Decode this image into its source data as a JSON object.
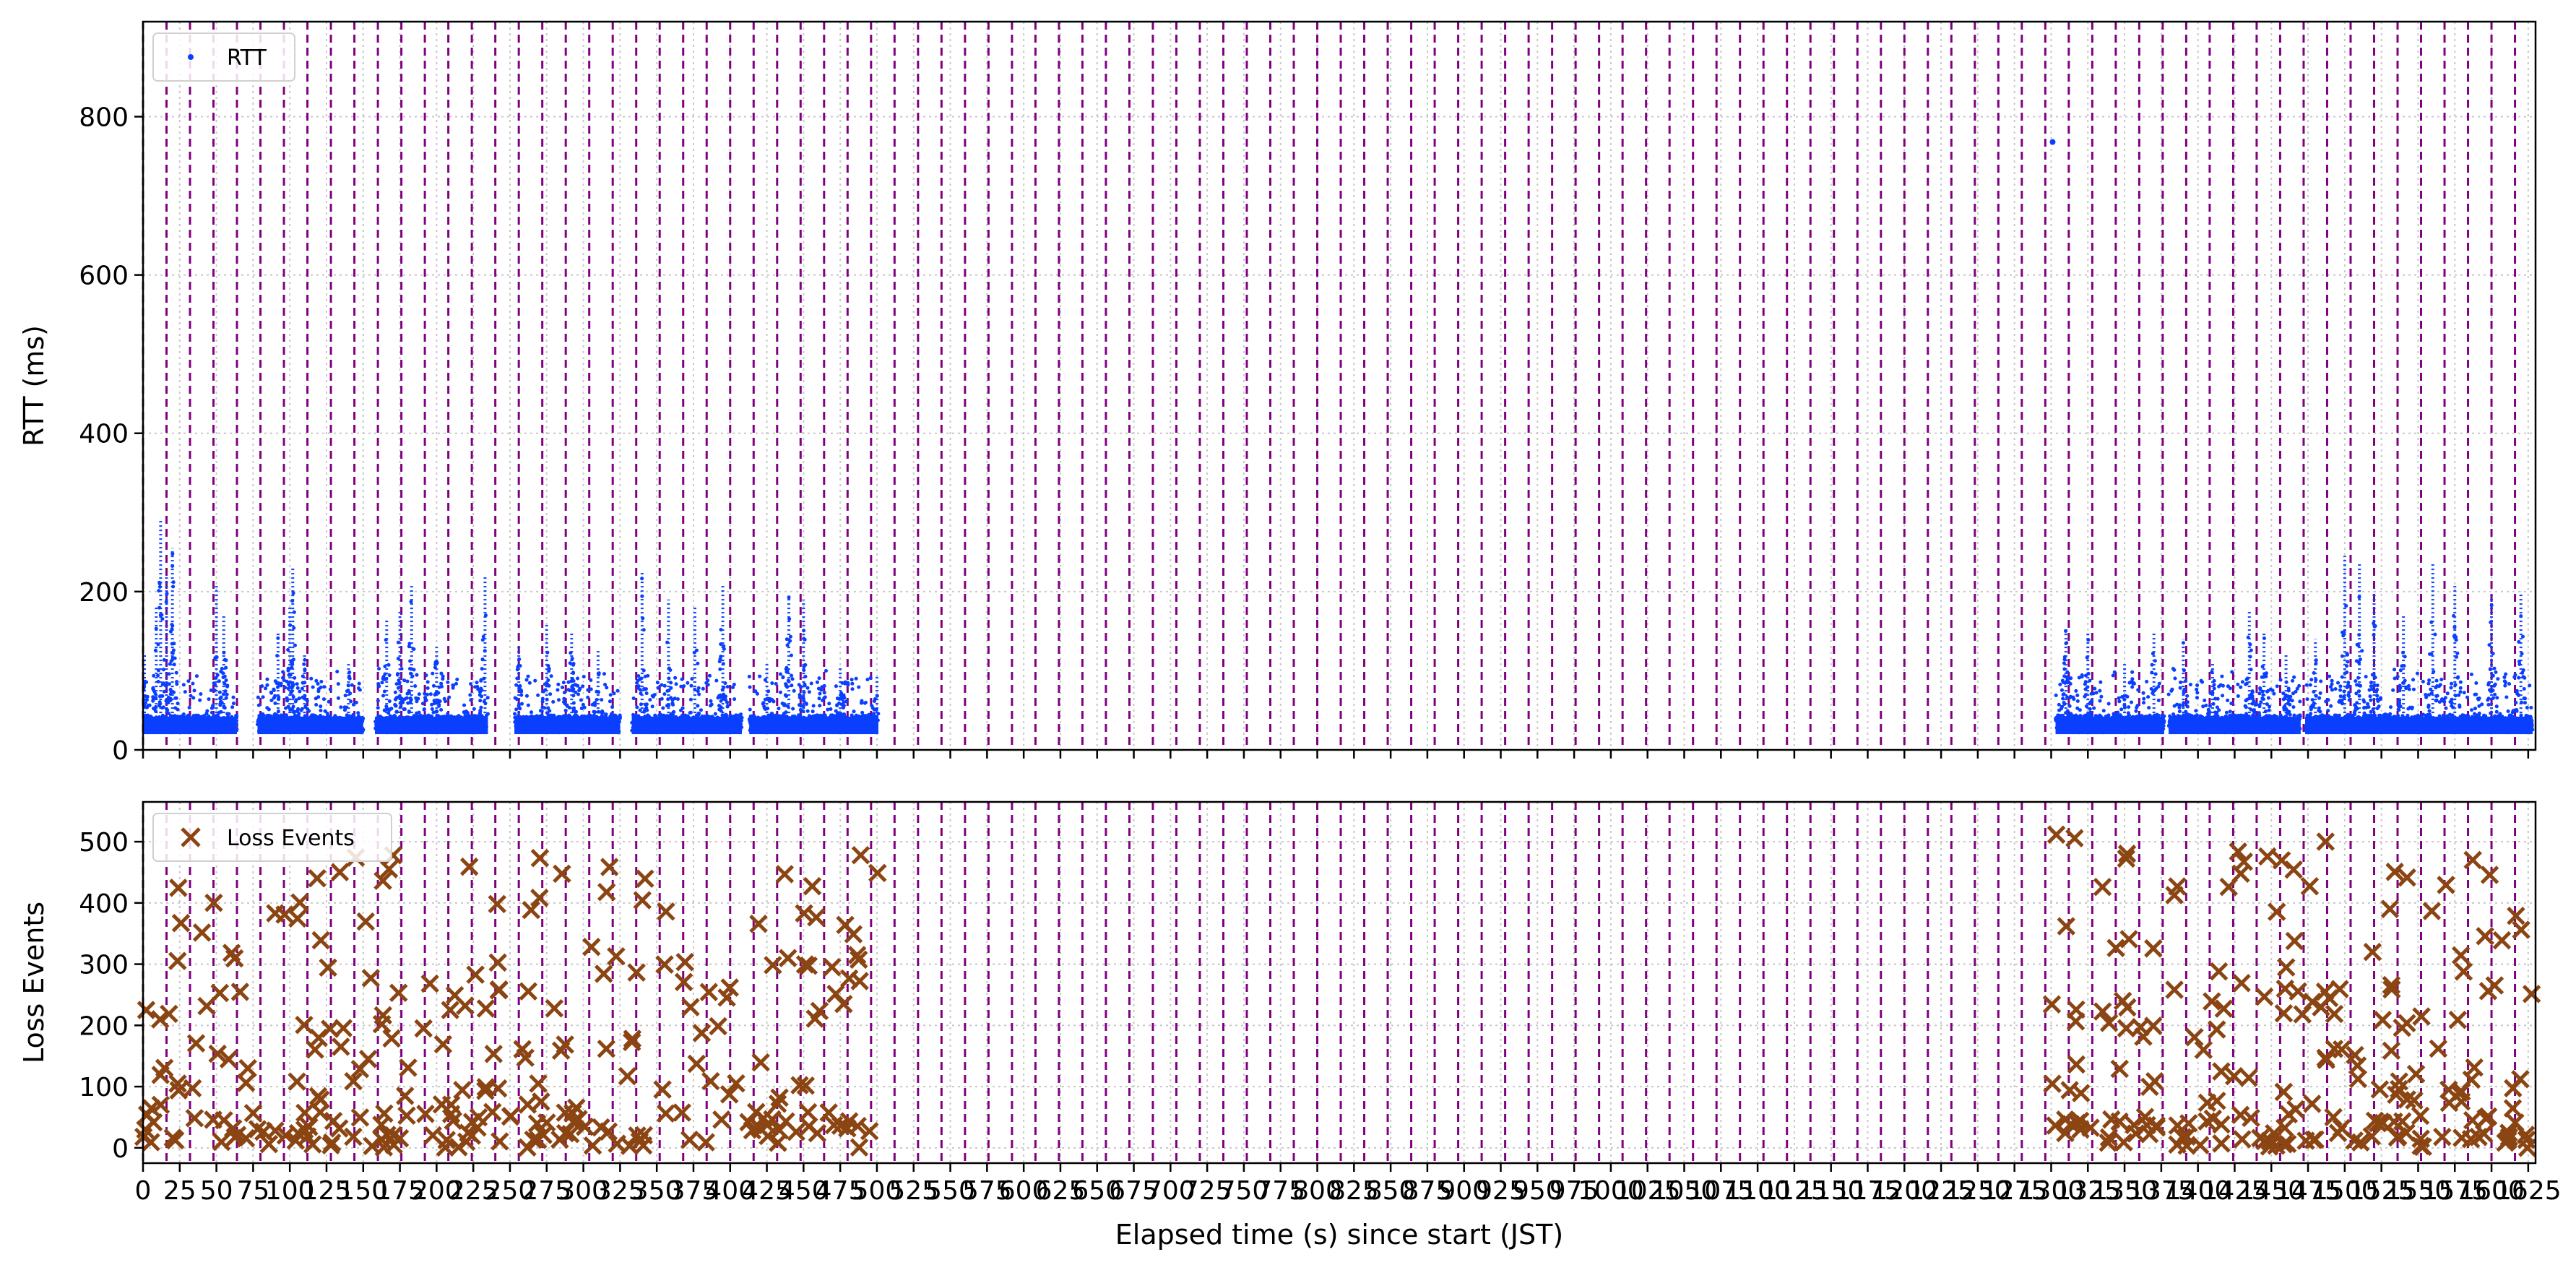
{
  "chart_data": [
    {
      "type": "scatter",
      "ylabel": "RTT (ms)",
      "ylim": [
        0,
        920
      ],
      "yticks": [
        0,
        200,
        400,
        600,
        800
      ],
      "xlim": [
        0,
        1630
      ],
      "grid": true,
      "legend_position": "top-left",
      "series": [
        {
          "name": "RTT",
          "color": "#0a3fff",
          "marker": "dot",
          "segments": [
            {
              "x": [
                0,
                64
              ],
              "base": 30,
              "peaks": [
                [
                  1,
                  120
                ],
                [
                  9,
                  180
                ],
                [
                  12,
                  290
                ],
                [
                  16,
                  220
                ],
                [
                  20,
                  255
                ],
                [
                  50,
                  210
                ],
                [
                  55,
                  170
                ]
              ]
            },
            {
              "x": [
                78,
                150
              ],
              "base": 30,
              "peaks": [
                [
                  92,
                  150
                ],
                [
                  100,
                  180
                ],
                [
                  102,
                  230
                ],
                [
                  110,
                  120
                ],
                [
                  140,
                  110
                ]
              ]
            },
            {
              "x": [
                158,
                235
              ],
              "base": 30,
              "peaks": [
                [
                  166,
                  165
                ],
                [
                  175,
                  175
                ],
                [
                  183,
                  210
                ],
                [
                  200,
                  130
                ],
                [
                  233,
                  220
                ]
              ]
            },
            {
              "x": [
                253,
                325
              ],
              "base": 30,
              "peaks": [
                [
                  256,
                  130
                ],
                [
                  275,
                  160
                ],
                [
                  292,
                  150
                ],
                [
                  310,
                  125
                ]
              ]
            },
            {
              "x": [
                333,
                408
              ],
              "base": 30,
              "peaks": [
                [
                  340,
                  225
                ],
                [
                  358,
                  190
                ],
                [
                  376,
                  180
                ],
                [
                  395,
                  210
                ]
              ]
            },
            {
              "x": [
                413,
                501
              ],
              "base": 30,
              "peaks": [
                [
                  425,
                  110
                ],
                [
                  440,
                  195
                ],
                [
                  450,
                  190
                ],
                [
                  475,
                  105
                ],
                [
                  500,
                  95
                ]
              ]
            },
            {
              "x": [
                1303,
                1377
              ],
              "base": 30,
              "peaks": [
                [
                  1310,
                  155
                ],
                [
                  1325,
                  150
                ],
                [
                  1350,
                  110
                ],
                [
                  1370,
                  150
                ]
              ]
            },
            {
              "x": [
                1380,
                1470
              ],
              "base": 30,
              "peaks": [
                [
                  1390,
                  140
                ],
                [
                  1410,
                  110
                ],
                [
                  1435,
                  175
                ],
                [
                  1445,
                  150
                ],
                [
                  1460,
                  120
                ]
              ]
            },
            {
              "x": [
                1473,
                1536
              ],
              "base": 30,
              "peaks": [
                [
                  1480,
                  140
                ],
                [
                  1500,
                  245
                ],
                [
                  1510,
                  235
                ],
                [
                  1520,
                  200
                ]
              ]
            },
            {
              "x": [
                1536,
                1628
              ],
              "base": 30,
              "peaks": [
                [
                  1540,
                  170
                ],
                [
                  1560,
                  235
                ],
                [
                  1575,
                  210
                ],
                [
                  1600,
                  195
                ],
                [
                  1620,
                  200
                ]
              ]
            }
          ],
          "outliers": [
            [
              1301,
              768
            ]
          ]
        }
      ]
    },
    {
      "type": "scatter",
      "ylabel": "Loss Events",
      "xlabel": "Elapsed time (s) since start (JST)",
      "ylim": [
        -25,
        565
      ],
      "yticks": [
        0,
        100,
        200,
        300,
        400,
        500
      ],
      "xlim": [
        0,
        1630
      ],
      "xticks": [
        0,
        25,
        50,
        75,
        100,
        125,
        150,
        175,
        200,
        225,
        250,
        275,
        300,
        325,
        350,
        375,
        400,
        425,
        450,
        475,
        500,
        525,
        550,
        575,
        600,
        625,
        650,
        675,
        700,
        725,
        750,
        775,
        800,
        825,
        850,
        875,
        900,
        925,
        950,
        975,
        1000,
        1025,
        1050,
        1075,
        1100,
        1125,
        1150,
        1175,
        1200,
        1225,
        1250,
        1275,
        1300,
        1325,
        1350,
        1375,
        1400,
        1425,
        1450,
        1475,
        1500,
        1525,
        1550,
        1575,
        1600,
        1625
      ],
      "grid": true,
      "legend_position": "top-left",
      "series": [
        {
          "name": "Loss Events",
          "color": "#8b4513",
          "marker": "x",
          "ranges": [
            [
              0,
              501
            ],
            [
              1300,
              1630
            ]
          ],
          "points_per_range": [
            260,
            200
          ]
        }
      ]
    }
  ],
  "vertical_markers": {
    "color": "#800080",
    "style": "dashed",
    "x": [
      0,
      16,
      32,
      48,
      64,
      80,
      96,
      112,
      128,
      144,
      160,
      176,
      192,
      208,
      224,
      240,
      256,
      272,
      288,
      304,
      320,
      336,
      352,
      368,
      384,
      400,
      416,
      432,
      448,
      464,
      480,
      496,
      512,
      528,
      544,
      560,
      576,
      592,
      608,
      624,
      640,
      656,
      672,
      688,
      704,
      720,
      736,
      752,
      768,
      784,
      800,
      816,
      832,
      848,
      864,
      880,
      896,
      912,
      928,
      944,
      960,
      976,
      992,
      1008,
      1024,
      1040,
      1056,
      1072,
      1088,
      1104,
      1120,
      1136,
      1152,
      1168,
      1184,
      1200,
      1216,
      1232,
      1248,
      1264,
      1280,
      1296,
      1312,
      1328,
      1344,
      1360,
      1376,
      1392,
      1408,
      1424,
      1440,
      1456,
      1472,
      1488,
      1504,
      1520,
      1536,
      1552,
      1568,
      1584,
      1600,
      1616
    ]
  }
}
